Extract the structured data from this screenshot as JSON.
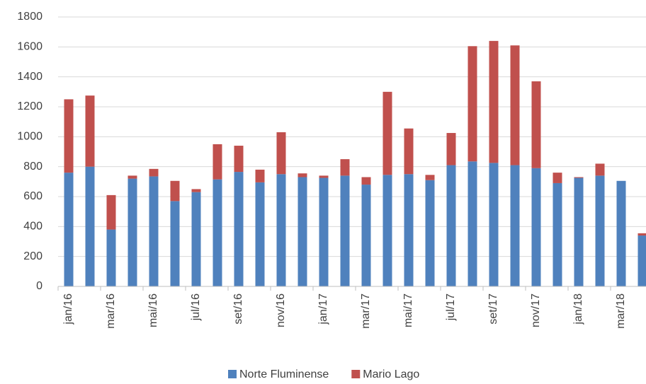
{
  "chart_data": {
    "type": "stacked_bar",
    "categories": [
      "jan/16",
      null,
      "mar/16",
      null,
      "mai/16",
      null,
      "jul/16",
      null,
      "set/16",
      null,
      "nov/16",
      null,
      "jan/17",
      null,
      "mar/17",
      null,
      "mai/17",
      null,
      "jul/17",
      null,
      "set/17",
      null,
      "nov/17",
      null,
      "jan/18",
      null,
      "mar/18",
      null
    ],
    "series": [
      {
        "name": "Norte Fluminense",
        "color": "#4f81bd",
        "values": [
          760,
          800,
          380,
          720,
          735,
          570,
          630,
          715,
          765,
          695,
          750,
          730,
          725,
          740,
          680,
          745,
          750,
          710,
          810,
          835,
          825,
          810,
          790,
          690,
          725,
          740,
          705,
          340
        ]
      },
      {
        "name": "Mario Lago",
        "color": "#c0504d",
        "values": [
          490,
          475,
          230,
          20,
          50,
          135,
          20,
          235,
          175,
          85,
          280,
          25,
          15,
          110,
          50,
          555,
          305,
          35,
          215,
          770,
          815,
          800,
          580,
          70,
          5,
          80,
          0,
          15
        ]
      }
    ],
    "ylim": [
      0,
      1800
    ],
    "yticks": [
      0,
      200,
      400,
      600,
      800,
      1000,
      1200,
      1400,
      1600,
      1800
    ],
    "grid": true,
    "legend": "bottom"
  }
}
